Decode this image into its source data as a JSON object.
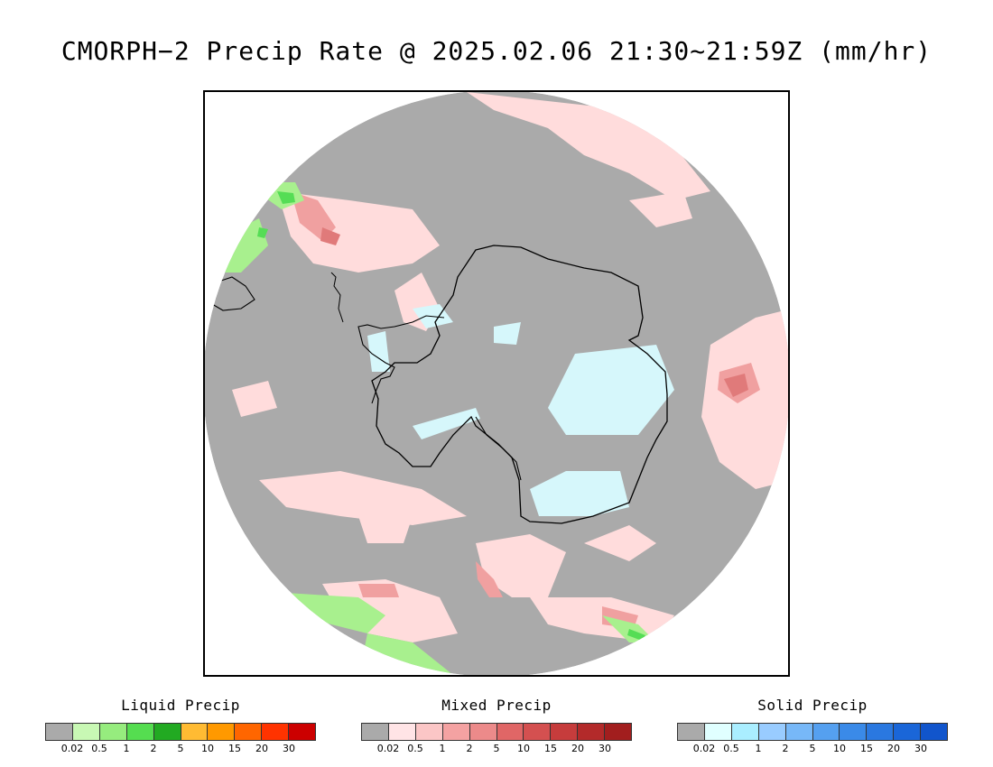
{
  "title": "CMORPH−2 Precip Rate @ 2025.02.06 21:30~21:59Z (mm/hr)",
  "map": {
    "projection": "south polar stereographic",
    "colors": {
      "no_precip": "#aaaaaa",
      "ocean_bg": "#aaaaaa",
      "mixed_light": "#ffdcdc",
      "mixed_mid": "#f0a0a0",
      "mixed_dark": "#e07a7a",
      "solid_light": "#d6f7fb",
      "liquid_light": "#a8f08e",
      "liquid_mid": "#55dd55",
      "coastline": "#000000"
    }
  },
  "legends": [
    {
      "name": "Liquid Precip",
      "colors": [
        "#aaaaaa",
        "#c8f8b4",
        "#96ec7e",
        "#55dd50",
        "#22aa22",
        "#ffbb33",
        "#ff9900",
        "#ff6600",
        "#ff3300",
        "#cc0000"
      ],
      "ticks": [
        "0.02",
        "0.5",
        "1",
        "2",
        "5",
        "10",
        "15",
        "20",
        "30"
      ]
    },
    {
      "name": "Mixed Precip",
      "colors": [
        "#aaaaaa",
        "#ffe4e6",
        "#fbc6c6",
        "#f4a2a2",
        "#ec8a8a",
        "#e06666",
        "#d45050",
        "#c63c3c",
        "#b32a2a",
        "#a21e1e"
      ],
      "ticks": [
        "0.02",
        "0.5",
        "1",
        "2",
        "5",
        "10",
        "15",
        "20",
        "30"
      ]
    },
    {
      "name": "Solid Precip",
      "colors": [
        "#aaaaaa",
        "#e0ffff",
        "#aaeeff",
        "#99ccff",
        "#77b8f8",
        "#55a0f0",
        "#3a8ae8",
        "#2a78e0",
        "#1a66d8",
        "#1155cc"
      ],
      "ticks": [
        "0.02",
        "0.5",
        "1",
        "2",
        "5",
        "10",
        "15",
        "20",
        "30"
      ]
    }
  ]
}
